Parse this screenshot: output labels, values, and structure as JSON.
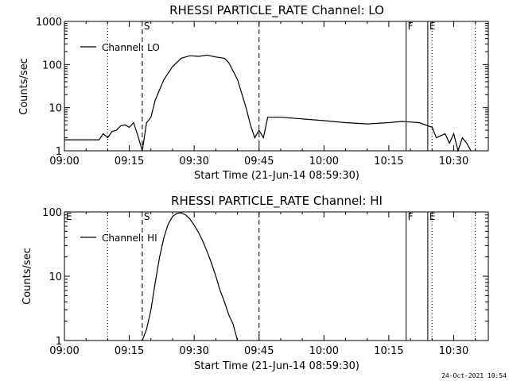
{
  "footer": {
    "timestamp": "24-Oct-2021 10:54"
  },
  "chart_data": [
    {
      "type": "line",
      "title": "RHESSI PARTICLE_RATE Channel: LO",
      "xlabel": "Start Time (21-Jun-14 08:59:30)",
      "ylabel": "Counts/sec",
      "yscale": "log",
      "ylim": [
        1,
        1000
      ],
      "xlim": [
        "09:00",
        "10:38"
      ],
      "x_ticks": [
        "09:00",
        "09:15",
        "09:30",
        "09:45",
        "10:00",
        "10:15",
        "10:30"
      ],
      "y_ticks": [
        "1",
        "10",
        "100",
        "1000"
      ],
      "legend": {
        "position": "top-left",
        "entries": [
          "Channel: LO"
        ]
      },
      "markers": [
        {
          "label": "S",
          "time": "09:18",
          "style": "dashed"
        },
        {
          "label": "",
          "time": "09:45",
          "style": "dashed"
        },
        {
          "label": "",
          "time": "09:10",
          "style": "dotted"
        },
        {
          "label": "",
          "time": "10:25",
          "style": "dotted"
        },
        {
          "label": "",
          "time": "10:35",
          "style": "dotted"
        },
        {
          "label": "F",
          "time": "10:19",
          "style": "solid"
        },
        {
          "label": "E",
          "time": "10:24",
          "style": "solid"
        }
      ],
      "series": [
        {
          "name": "Channel: LO",
          "x": [
            "09:00",
            "09:08",
            "09:09",
            "09:10",
            "09:11",
            "09:12",
            "09:13",
            "09:14",
            "09:15",
            "09:16",
            "09:17",
            "09:18",
            "09:19",
            "09:20",
            "09:21",
            "09:23",
            "09:25",
            "09:27",
            "09:29",
            "09:31",
            "09:33",
            "09:35",
            "09:37",
            "09:38",
            "09:40",
            "09:42",
            "09:43",
            "09:44",
            "09:45",
            "09:46",
            "09:47",
            "09:48",
            "09:50",
            "09:55",
            "10:00",
            "10:05",
            "10:10",
            "10:15",
            "10:18",
            "10:22",
            "10:25",
            "10:26",
            "10:28",
            "10:29",
            "10:30",
            "10:31",
            "10:32",
            "10:33",
            "10:34"
          ],
          "values": [
            1.8,
            1.8,
            2.5,
            2.0,
            2.8,
            3.0,
            3.8,
            4.0,
            3.5,
            4.5,
            2.2,
            1.0,
            4.5,
            6.0,
            15,
            45,
            90,
            140,
            160,
            155,
            165,
            150,
            140,
            110,
            45,
            10,
            4,
            2,
            3,
            2,
            6,
            6,
            6,
            5.5,
            5,
            4.5,
            4.2,
            4.5,
            4.8,
            4.5,
            3.5,
            2.0,
            2.5,
            1.5,
            2.5,
            1.0,
            2.0,
            1.5,
            1.0
          ]
        }
      ]
    },
    {
      "type": "line",
      "title": "RHESSI PARTICLE_RATE Channel: HI",
      "xlabel": "Start Time (21-Jun-14 08:59:30)",
      "ylabel": "Counts/sec",
      "yscale": "log",
      "ylim": [
        1,
        100
      ],
      "xlim": [
        "09:00",
        "10:38"
      ],
      "x_ticks": [
        "09:00",
        "09:15",
        "09:30",
        "09:45",
        "10:00",
        "10:15",
        "10:30"
      ],
      "y_ticks": [
        "1",
        "10",
        "100"
      ],
      "legend": {
        "position": "top-left",
        "entries": [
          "Channel: HI"
        ]
      },
      "markers": [
        {
          "label": "E",
          "time": "09:00",
          "style": "none"
        },
        {
          "label": "S",
          "time": "09:18",
          "style": "dashed"
        },
        {
          "label": "",
          "time": "09:45",
          "style": "dashed"
        },
        {
          "label": "",
          "time": "09:10",
          "style": "dotted"
        },
        {
          "label": "",
          "time": "10:25",
          "style": "dotted"
        },
        {
          "label": "",
          "time": "10:35",
          "style": "dotted"
        },
        {
          "label": "F",
          "time": "10:19",
          "style": "solid"
        },
        {
          "label": "E",
          "time": "10:24",
          "style": "solid"
        }
      ],
      "series": [
        {
          "name": "Channel: HI",
          "x": [
            "09:18",
            "09:19",
            "09:20",
            "09:21",
            "09:22",
            "09:23",
            "09:24",
            "09:25",
            "09:26",
            "09:27",
            "09:28",
            "09:29",
            "09:30",
            "09:31",
            "09:32",
            "09:33",
            "09:34",
            "09:35",
            "09:36",
            "09:37",
            "09:38",
            "09:39",
            "09:40"
          ],
          "values": [
            1.0,
            1.5,
            3,
            8,
            20,
            40,
            65,
            85,
            95,
            97,
            90,
            78,
            62,
            48,
            35,
            24,
            16,
            10,
            6,
            4,
            2.5,
            1.8,
            1.0
          ]
        }
      ]
    }
  ]
}
